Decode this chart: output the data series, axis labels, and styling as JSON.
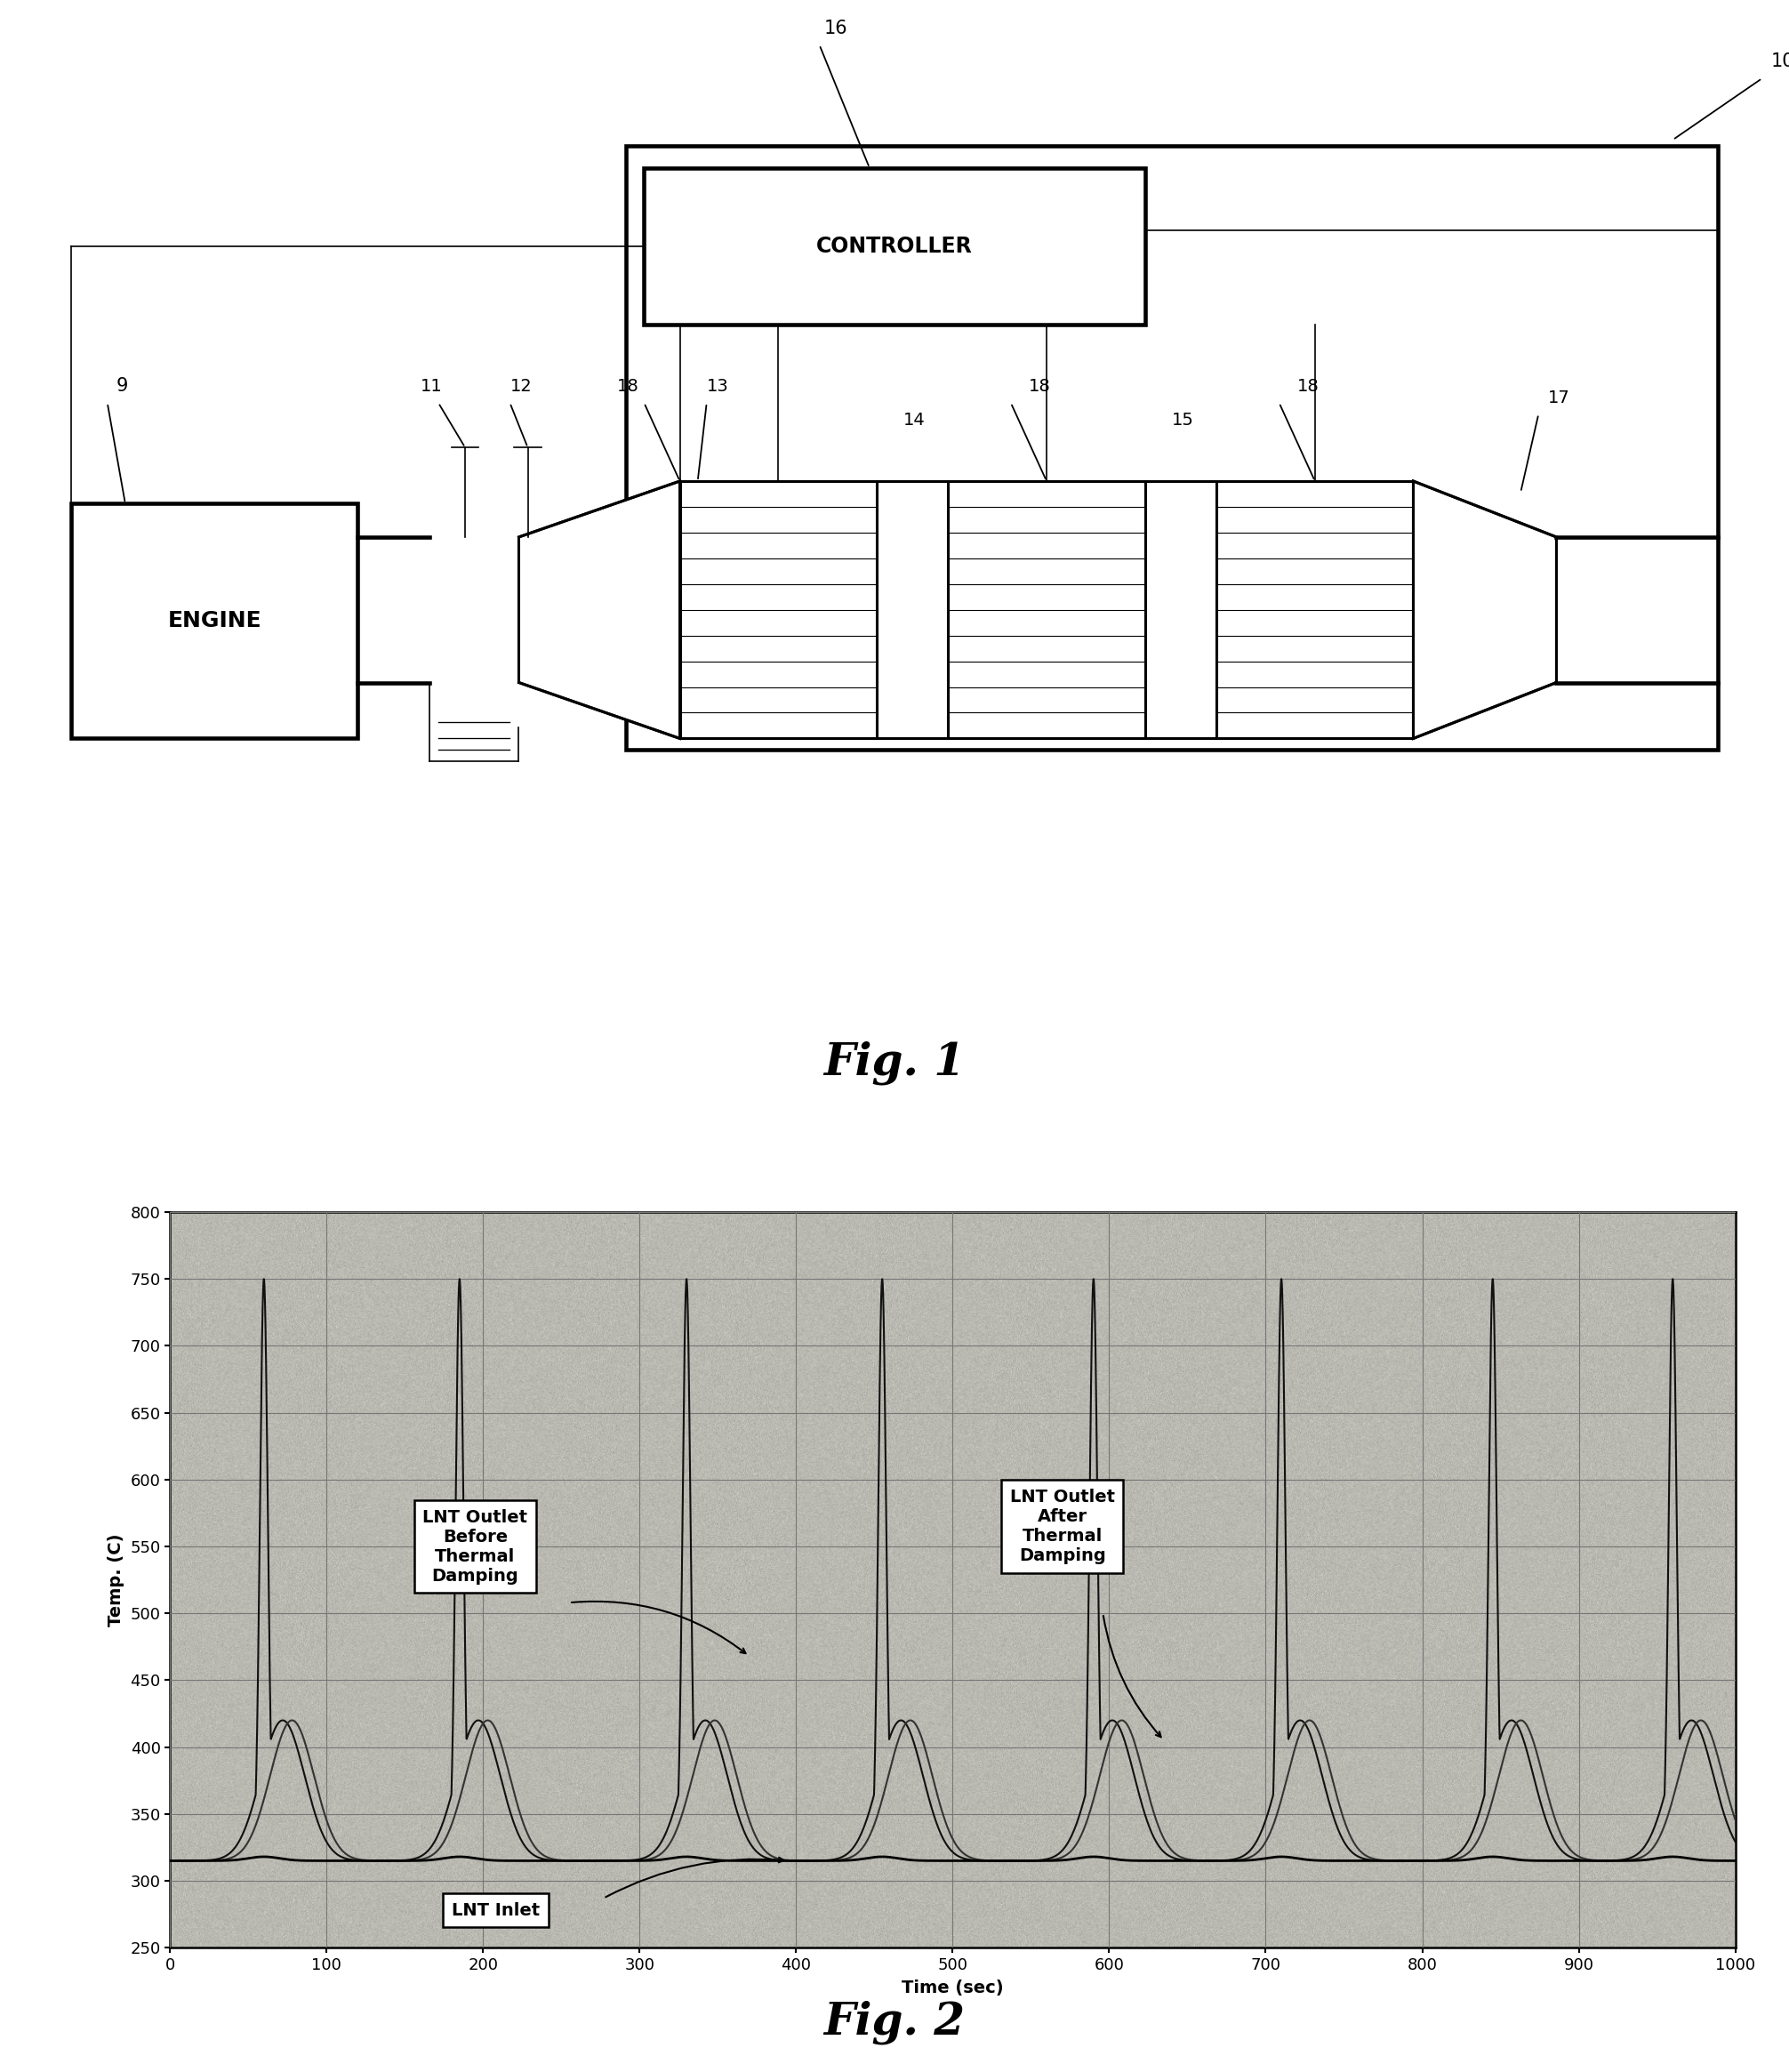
{
  "fig1_title": "Fig. 1",
  "fig2_title": "Fig. 2",
  "graph_xlabel": "Time (sec)",
  "graph_ylabel": "Temp. (C)",
  "graph_xlim": [
    0,
    1000
  ],
  "graph_ylim": [
    250,
    800
  ],
  "graph_yticks": [
    250,
    300,
    350,
    400,
    450,
    500,
    550,
    600,
    650,
    700,
    750,
    800
  ],
  "graph_xticks": [
    0,
    100,
    200,
    300,
    400,
    500,
    600,
    700,
    800,
    900,
    1000
  ],
  "label_before": "LNT Outlet\nBefore\nThermal\nDamping",
  "label_after": "LNT Outlet\nAfter\nThermal\nDamping",
  "label_inlet": "LNT Inlet",
  "pulse_times": [
    60,
    185,
    330,
    455,
    590,
    710,
    845,
    960
  ],
  "inlet_base": 315,
  "outlet_before_peak": 755,
  "outlet_after_peak": 420,
  "bg_color": "#e8e8de",
  "engine_label": "ENGINE",
  "controller_label": "CONTROLLER",
  "lw_main": 2.2,
  "lw_thin": 1.2
}
